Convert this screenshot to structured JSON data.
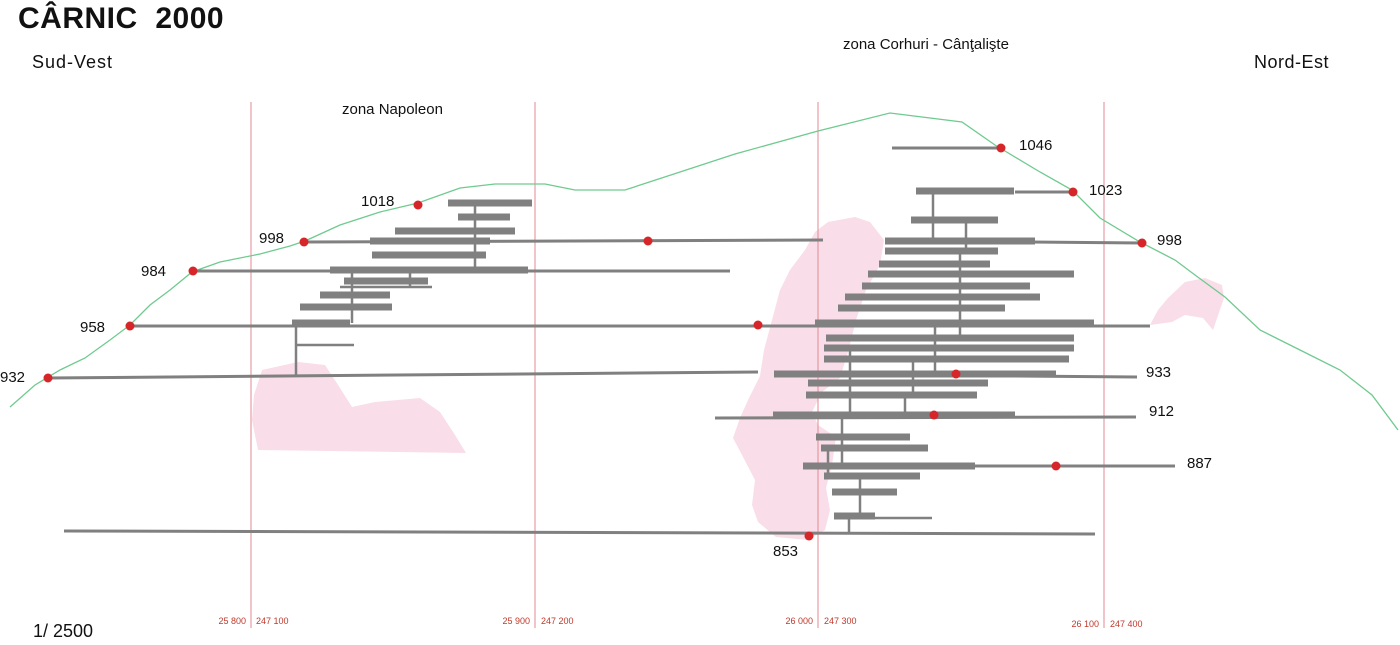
{
  "title": "CÂRNIC  2000",
  "orientation": {
    "left": "Sud-Vest",
    "right": "Nord-Est"
  },
  "scale": "1/ 2500",
  "zones": {
    "left": "zona Napoleon",
    "right": "zona Corhuri - Cânţalişte"
  },
  "grid_labels": [
    {
      "a": "25 800",
      "b": "247 100"
    },
    {
      "a": "25 900",
      "b": "247 200"
    },
    {
      "a": "26 000",
      "b": "247 300"
    },
    {
      "a": "26 100",
      "b": "247 400"
    }
  ],
  "elevations": [
    "1046",
    "1023",
    "1018",
    "998",
    "998",
    "984",
    "958",
    "933",
    "932",
    "912",
    "887",
    "853"
  ],
  "colors": {
    "terrain": "#6fca8f",
    "gallery": "#808080",
    "portal": "#d7262a",
    "ore": "#f9dde9",
    "grid": "#e38a94",
    "coord_text": "#c0392b"
  }
}
